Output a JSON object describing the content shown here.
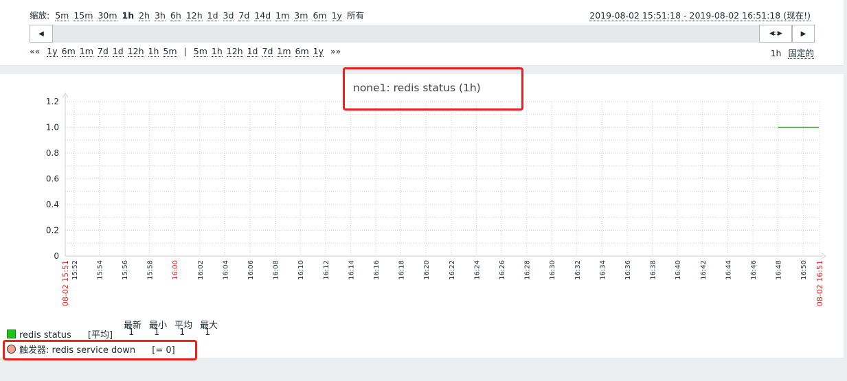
{
  "filter": {
    "zoom_label": "缩放:",
    "zoom_options": [
      "5m",
      "15m",
      "30m",
      "1h",
      "2h",
      "3h",
      "6h",
      "12h",
      "1d",
      "3d",
      "7d",
      "14d",
      "1m",
      "3m",
      "6m",
      "1y",
      "所有"
    ],
    "zoom_selected": "1h",
    "range_text": "2019-08-02 15:51:18 - 2019-08-02 16:51:18 (现在!)",
    "nav_start": "««",
    "nav_back": [
      "1y",
      "6m",
      "1m",
      "7d",
      "1d",
      "12h",
      "1h",
      "5m"
    ],
    "nav_separator": "|",
    "nav_forward": [
      "5m",
      "1h",
      "12h",
      "1d",
      "7d",
      "1m",
      "6m",
      "1y"
    ],
    "nav_end": "»»",
    "period": "1h",
    "fixed_label": "固定的",
    "left_arrow": "◀",
    "right_arrow": "▶",
    "handle": "◀:::▶"
  },
  "graph": {
    "title": "none1: redis status (1h)",
    "y_ticks": [
      "1.2",
      "1.0",
      "0.8",
      "0.6",
      "0.4",
      "0.2",
      "0"
    ],
    "x_start_label": "08-02 15:51",
    "x_mid_red_label": "16:00",
    "x_end_label": "08-02 16:51",
    "x_ticks": [
      "15:52",
      "15:54",
      "15:56",
      "15:58",
      "16:02",
      "16:04",
      "16:06",
      "16:08",
      "16:10",
      "16:12",
      "16:14",
      "16:16",
      "16:18",
      "16:20",
      "16:22",
      "16:24",
      "16:26",
      "16:28",
      "16:30",
      "16:32",
      "16:34",
      "16:36",
      "16:38",
      "16:40",
      "16:42",
      "16:44",
      "16:46",
      "16:48",
      "16:50"
    ],
    "series_color": "#1bc41b",
    "accent_red": "#e8221c"
  },
  "chart_data": {
    "type": "line",
    "title": "none1: redis status (1h)",
    "ylim": [
      0,
      1.2
    ],
    "series": [
      {
        "name": "redis status",
        "x": [
          "16:48",
          "16:51"
        ],
        "values": [
          1,
          1
        ]
      }
    ]
  },
  "legend": {
    "item_name": "redis status",
    "item_agg": "[平均]",
    "col_headers": [
      "最新",
      "最小",
      "平均",
      "最大"
    ],
    "col_values": [
      "1",
      "1",
      "1",
      "1"
    ],
    "trigger_label": "触发器: redis service down",
    "trigger_cond": "[= 0]"
  }
}
